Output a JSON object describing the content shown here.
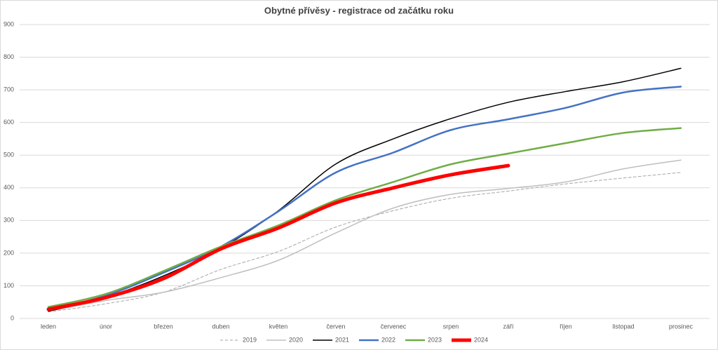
{
  "chart_data": {
    "type": "line",
    "title": "Obytné přívěsy - registrace od začátku roku",
    "categories": [
      "leden",
      "únor",
      "březen",
      "duben",
      "květen",
      "červen",
      "červenec",
      "srpen",
      "září",
      "říjen",
      "listopad",
      "prosinec"
    ],
    "series": [
      {
        "name": "2019",
        "color": "#a6a6a6",
        "dashed": true,
        "width": 1,
        "values": [
          20,
          45,
          80,
          150,
          205,
          280,
          330,
          368,
          390,
          412,
          430,
          447
        ]
      },
      {
        "name": "2020",
        "color": "#bfbfbf",
        "width": 1.5,
        "values": [
          22,
          55,
          80,
          125,
          178,
          262,
          338,
          380,
          398,
          418,
          458,
          485
        ]
      },
      {
        "name": "2021",
        "color": "#000000",
        "width": 1.5,
        "values": [
          22,
          65,
          130,
          215,
          330,
          473,
          550,
          612,
          662,
          695,
          725,
          766
        ]
      },
      {
        "name": "2022",
        "color": "#4472c4",
        "width": 2.5,
        "values": [
          25,
          70,
          140,
          220,
          328,
          447,
          508,
          577,
          610,
          645,
          692,
          710
        ]
      },
      {
        "name": "2023",
        "color": "#70ad47",
        "width": 2.5,
        "values": [
          35,
          75,
          145,
          220,
          285,
          362,
          418,
          472,
          505,
          537,
          568,
          583
        ]
      },
      {
        "name": "2024",
        "color": "#ff0000",
        "width": 5,
        "values": [
          28,
          64,
          122,
          213,
          277,
          354,
          400,
          440,
          468,
          null,
          null,
          null
        ]
      }
    ],
    "ylim": [
      0,
      900
    ],
    "yticks": [
      0,
      100,
      200,
      300,
      400,
      500,
      600,
      700,
      800,
      900
    ],
    "grid": true,
    "legend": "bottom"
  }
}
